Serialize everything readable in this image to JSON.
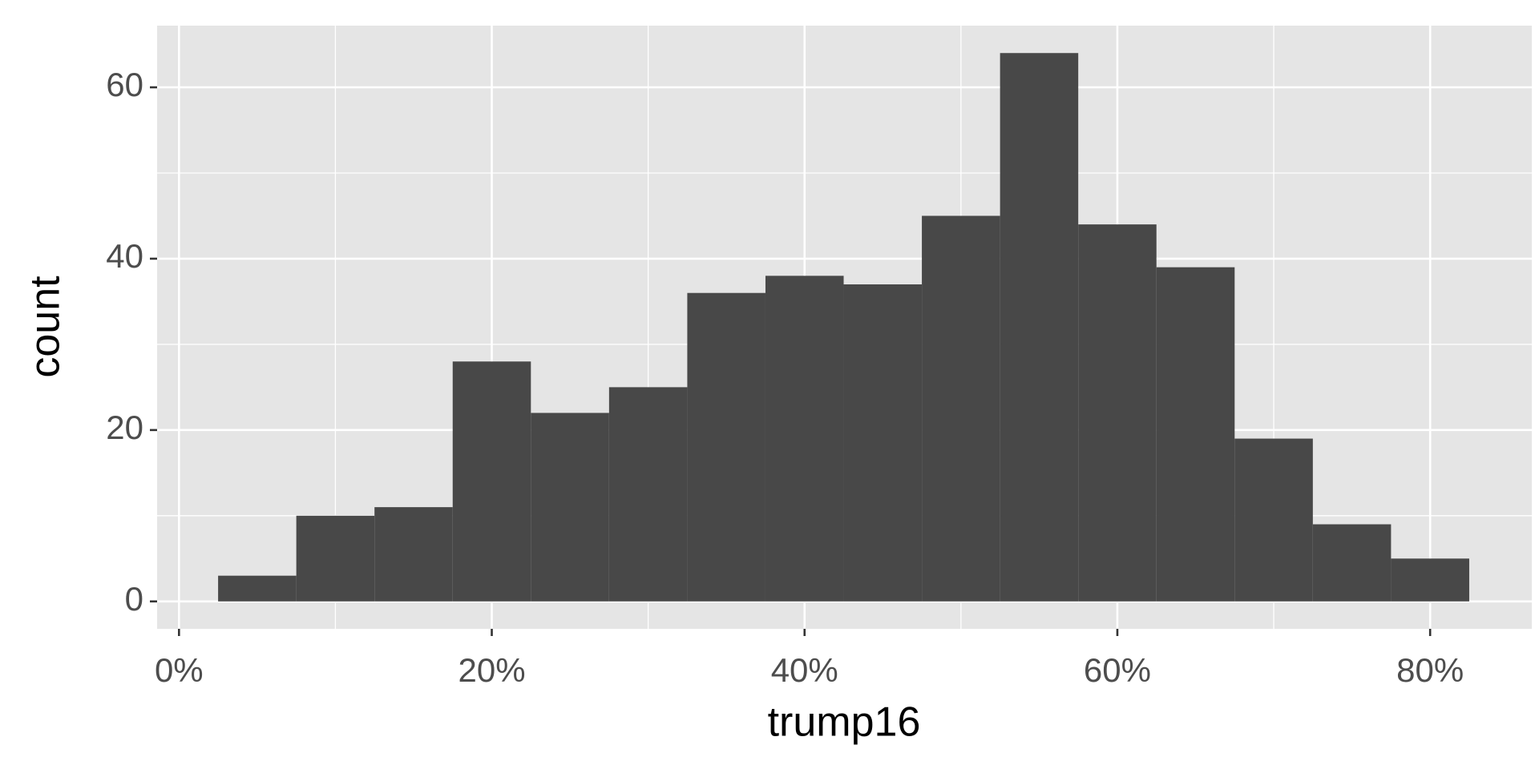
{
  "chart_data": {
    "type": "histogram",
    "x_label": "trump16",
    "y_label": "count",
    "bins": [
      2.5,
      7.5,
      12.5,
      17.5,
      22.5,
      27.5,
      32.5,
      37.5,
      42.5,
      47.5,
      52.5,
      57.5,
      62.5,
      67.5,
      72.5,
      77.5,
      82.5
    ],
    "values": [
      3,
      10,
      11,
      28,
      22,
      25,
      36,
      38,
      37,
      45,
      64,
      44,
      39,
      19,
      9,
      5
    ],
    "color": "#484848",
    "xlim": [
      -1.4,
      86.5
    ],
    "xticks": [
      {
        "value": 0,
        "label": "0%"
      },
      {
        "value": 20,
        "label": "20%"
      },
      {
        "value": 40,
        "label": "40%"
      },
      {
        "value": 60,
        "label": "60%"
      },
      {
        "value": 80,
        "label": "80%"
      }
    ],
    "minor_xticks": [
      10,
      30,
      50,
      70
    ],
    "ylim": [
      -3.2,
      67.2
    ],
    "yticks": [
      0,
      20,
      40,
      60
    ],
    "minor_yticks": [
      10,
      30,
      50
    ],
    "grid": true
  }
}
